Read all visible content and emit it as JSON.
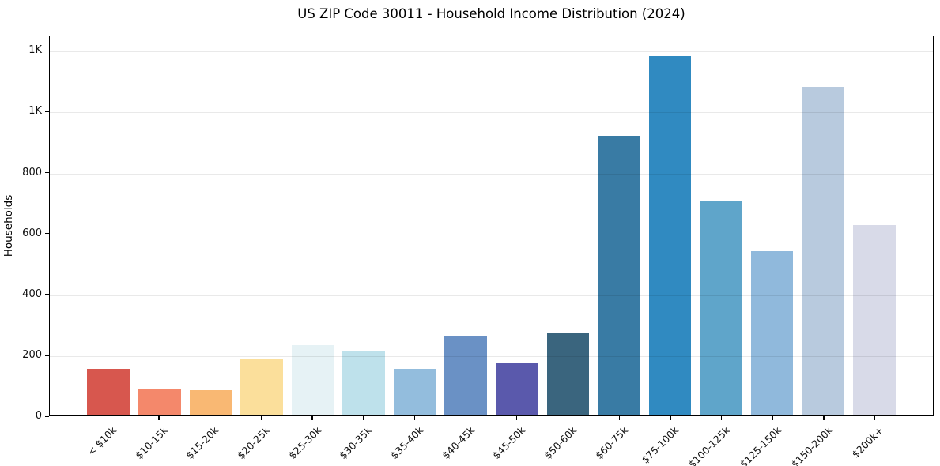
{
  "chart_data": {
    "type": "bar",
    "title": "US ZIP Code 30011 - Household Income Distribution (2024)",
    "xlabel": "",
    "ylabel": "Households",
    "categories": [
      "< $10k",
      "$10-15k",
      "$15-20k",
      "$20-25k",
      "$25-30k",
      "$30-35k",
      "$35-40k",
      "$40-45k",
      "$45-50k",
      "$50-60k",
      "$60-75k",
      "$75-100k",
      "$100-125k",
      "$125-150k",
      "$150-200k",
      "$200k+"
    ],
    "values": [
      153,
      88,
      84,
      187,
      231,
      212,
      153,
      264,
      171,
      272,
      922,
      1186,
      706,
      543,
      1083,
      627
    ],
    "bar_colors": [
      "#d7574e",
      "#f4886b",
      "#f9b873",
      "#fbdf9b",
      "#e6f2f5",
      "#bee1eb",
      "#93bddd",
      "#6a91c5",
      "#5a59ac",
      "#3a657e",
      "#397ba4",
      "#308ac1",
      "#5fa5ca",
      "#90b9dc",
      "#b8cade",
      "#d8dae8"
    ],
    "ylim": [
      0,
      1250
    ],
    "yticks": [
      {
        "value": 0,
        "label": "0"
      },
      {
        "value": 200,
        "label": "200"
      },
      {
        "value": 400,
        "label": "400"
      },
      {
        "value": 600,
        "label": "600"
      },
      {
        "value": 800,
        "label": "800"
      },
      {
        "value": 1000,
        "label": "1K"
      },
      {
        "value": 1200,
        "label": "1K"
      }
    ],
    "grid": "horizontal",
    "legend": "none",
    "x_label_rotation_deg": 45
  }
}
